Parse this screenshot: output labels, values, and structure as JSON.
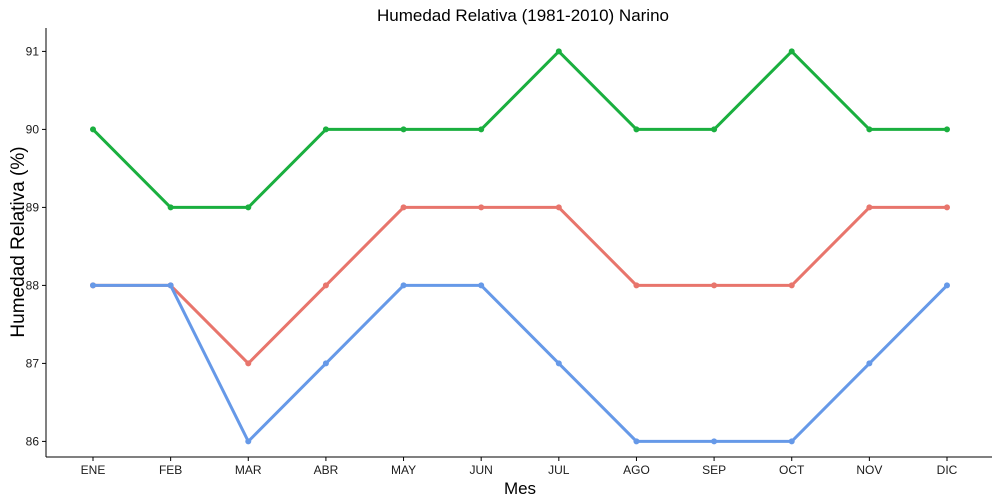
{
  "chart_data": {
    "type": "line",
    "title": "Humedad Relativa (1981-2010)  Narino",
    "xlabel": "Mes",
    "ylabel": "Humedad Relativa  (%)",
    "categories": [
      "ENE",
      "FEB",
      "MAR",
      "ABR",
      "MAY",
      "JUN",
      "JUL",
      "AGO",
      "SEP",
      "OCT",
      "NOV",
      "DIC"
    ],
    "yticks": [
      86,
      87,
      88,
      89,
      90,
      91
    ],
    "ylim": [
      85.8,
      91.3
    ],
    "grid": false,
    "legend": "none",
    "series": [
      {
        "color": "#1aaf3f",
        "values": [
          90,
          89,
          89,
          90,
          90,
          90,
          91,
          90,
          90,
          91,
          90,
          90
        ]
      },
      {
        "color": "#e8756c",
        "values": [
          88,
          88,
          87,
          88,
          89,
          89,
          89,
          88,
          88,
          88,
          89,
          89
        ]
      },
      {
        "color": "#6699e8",
        "values": [
          88,
          88,
          86,
          87,
          88,
          88,
          87,
          86,
          86,
          86,
          87,
          88
        ]
      }
    ]
  }
}
